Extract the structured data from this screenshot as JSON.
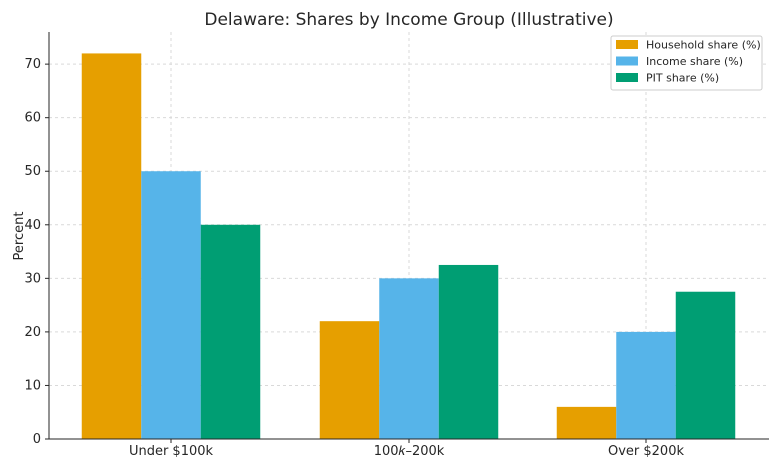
{
  "chart_data": {
    "type": "bar",
    "title": "Delaware: Shares by Income Group (Illustrative)",
    "xlabel": "",
    "ylabel": "Percent",
    "categories": [
      "Under $100k",
      "100𝑘–200k",
      "Over $200k"
    ],
    "series": [
      {
        "name": "Household share (%)",
        "values": [
          72,
          22,
          6
        ],
        "color": "#E69F00"
      },
      {
        "name": "Income share (%)",
        "values": [
          50,
          30,
          20
        ],
        "color": "#56B4E9"
      },
      {
        "name": "PIT share (%)",
        "values": [
          40,
          32.5,
          27.5
        ],
        "color": "#009E73"
      }
    ],
    "ylim": [
      0,
      76
    ],
    "yticks": [
      0,
      10,
      20,
      30,
      40,
      50,
      60,
      70
    ],
    "grid": true,
    "legend_position": "top-right"
  }
}
